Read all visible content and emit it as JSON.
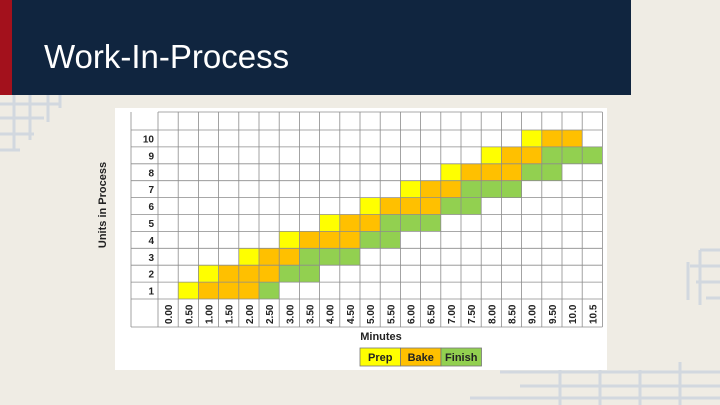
{
  "slide": {
    "title": "Work-In-Process",
    "colors": {
      "header": "#10253f",
      "accent_strip": "#a3111c",
      "background": "#efece4"
    }
  },
  "chart_data": {
    "type": "heatmap",
    "title": "",
    "xlabel": "Minutes",
    "ylabel": "Units in Process",
    "x_ticks": [
      "0.00",
      "0.50",
      "1.00",
      "1.50",
      "2.00",
      "2.50",
      "3.00",
      "3.50",
      "4.00",
      "4.50",
      "5.00",
      "5.50",
      "6.00",
      "6.50",
      "7.00",
      "7.50",
      "8.00",
      "8.50",
      "9.00",
      "9.50",
      "10.0",
      "10.5"
    ],
    "y_ticks": [
      1,
      2,
      3,
      4,
      5,
      6,
      7,
      8,
      9,
      10
    ],
    "grid": true,
    "legend": {
      "placement": "bottom",
      "entries": [
        {
          "name": "Prep",
          "color": "#ffff00"
        },
        {
          "name": "Bake",
          "color": "#ffc000"
        },
        {
          "name": "Finish",
          "color": "#92d050"
        }
      ]
    },
    "units": [
      {
        "unit": 1,
        "prep": [
          0.5,
          1.0
        ],
        "bake": [
          1.0,
          2.5
        ],
        "finish": [
          2.5,
          3.0
        ]
      },
      {
        "unit": 2,
        "prep": [
          1.0,
          1.5
        ],
        "bake": [
          1.5,
          3.0
        ],
        "finish": [
          3.0,
          4.0
        ]
      },
      {
        "unit": 3,
        "prep": [
          2.0,
          2.5
        ],
        "bake": [
          2.5,
          3.5
        ],
        "finish": [
          3.5,
          5.0
        ]
      },
      {
        "unit": 4,
        "prep": [
          3.0,
          3.5
        ],
        "bake": [
          3.5,
          5.0
        ],
        "finish": [
          5.0,
          6.0
        ]
      },
      {
        "unit": 5,
        "prep": [
          4.0,
          4.5
        ],
        "bake": [
          4.5,
          5.5
        ],
        "finish": [
          5.5,
          7.0
        ]
      },
      {
        "unit": 6,
        "prep": [
          5.0,
          5.5
        ],
        "bake": [
          5.5,
          7.0
        ],
        "finish": [
          7.0,
          8.0
        ]
      },
      {
        "unit": 7,
        "prep": [
          6.0,
          6.5
        ],
        "bake": [
          6.5,
          7.5
        ],
        "finish": [
          7.5,
          9.0
        ]
      },
      {
        "unit": 8,
        "prep": [
          7.0,
          7.5
        ],
        "bake": [
          7.5,
          9.0
        ],
        "finish": [
          9.0,
          10.0
        ]
      },
      {
        "unit": 9,
        "prep": [
          8.0,
          8.5
        ],
        "bake": [
          8.5,
          9.5
        ],
        "finish": [
          9.5,
          11.0
        ]
      },
      {
        "unit": 10,
        "prep": [
          9.0,
          9.5
        ],
        "bake": [
          9.5,
          10.5
        ]
      }
    ]
  }
}
